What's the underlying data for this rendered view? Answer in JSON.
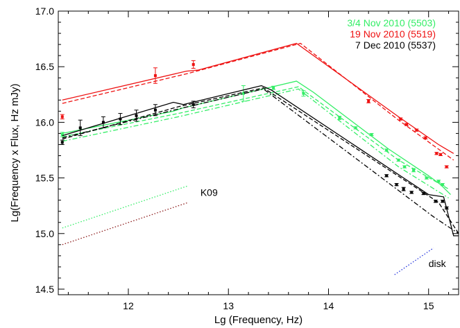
{
  "chart_data": {
    "type": "line",
    "title": "",
    "xlabel": "Lg (Frequency, Hz)",
    "ylabel": "Lg(Frequency x Flux, Hz mJy)",
    "xlim": [
      11.3,
      15.3
    ],
    "ylim": [
      14.45,
      17.0
    ],
    "x_ticks": [
      12,
      13,
      14,
      15
    ],
    "x_tick_labels": [
      "12",
      "13",
      "14",
      "15"
    ],
    "y_ticks": [
      14.5,
      15.0,
      15.5,
      16.0,
      16.5,
      17.0
    ],
    "y_tick_labels": [
      "14.5",
      "15.0",
      "15.5",
      "16.0",
      "16.5",
      "17.0"
    ],
    "grid": false,
    "legend_position": "top-right",
    "series": [
      {
        "name": "3/4 Nov 2010 (5503)",
        "color": "#33ee66",
        "points": [
          {
            "x": 11.34,
            "y": 15.89,
            "err": 0.02
          },
          {
            "x": 13.15,
            "y": 16.26,
            "err": 0.07
          },
          {
            "x": 13.45,
            "y": 16.31,
            "err": 0.015
          },
          {
            "x": 13.75,
            "y": 16.26,
            "err": 0.025
          },
          {
            "x": 14.11,
            "y": 16.04,
            "err": 0.015
          },
          {
            "x": 14.27,
            "y": 15.95,
            "err": 0.01
          },
          {
            "x": 14.43,
            "y": 15.89,
            "err": 0.01
          },
          {
            "x": 14.58,
            "y": 15.75,
            "err": 0.01
          },
          {
            "x": 14.7,
            "y": 15.66,
            "err": 0.01
          },
          {
            "x": 14.76,
            "y": 15.6,
            "err": 0.01
          },
          {
            "x": 14.85,
            "y": 15.57,
            "err": 0.015
          },
          {
            "x": 14.98,
            "y": 15.5,
            "err": 0.01
          },
          {
            "x": 15.1,
            "y": 15.47,
            "err": 0.01
          },
          {
            "x": 15.14,
            "y": 15.44,
            "err": 0.01
          }
        ],
        "model_solid": [
          [
            11.34,
            15.9
          ],
          [
            12.45,
            16.1
          ],
          [
            12.55,
            16.13
          ],
          [
            13.68,
            16.37
          ],
          [
            13.85,
            16.27
          ],
          [
            14.6,
            15.76
          ],
          [
            15.0,
            15.52
          ],
          [
            15.12,
            15.44
          ],
          [
            15.22,
            15.35
          ]
        ],
        "model_dashed": [
          [
            11.34,
            15.87
          ],
          [
            12.5,
            16.08
          ],
          [
            13.7,
            16.32
          ],
          [
            14.7,
            15.66
          ],
          [
            15.2,
            15.4
          ]
        ],
        "model_dashdot": [
          [
            11.34,
            15.83
          ],
          [
            12.5,
            16.05
          ],
          [
            13.7,
            16.3
          ],
          [
            14.7,
            15.6
          ],
          [
            15.2,
            15.32
          ]
        ]
      },
      {
        "name": "19 Nov 2010 (5519)",
        "color": "#ee1111",
        "points": [
          {
            "x": 11.34,
            "y": 16.05,
            "err": 0.02
          },
          {
            "x": 12.27,
            "y": 16.42,
            "err": 0.07
          },
          {
            "x": 12.65,
            "y": 16.52,
            "err": 0.035
          },
          {
            "x": 14.4,
            "y": 16.19,
            "err": 0.015
          },
          {
            "x": 14.72,
            "y": 16.03,
            "err": 0.01
          },
          {
            "x": 14.78,
            "y": 15.98,
            "err": 0.01
          },
          {
            "x": 14.88,
            "y": 15.93,
            "err": 0.01
          },
          {
            "x": 14.97,
            "y": 15.86,
            "err": 0.01
          },
          {
            "x": 15.08,
            "y": 15.72,
            "err": 0.01
          },
          {
            "x": 15.12,
            "y": 15.71,
            "err": 0.01
          },
          {
            "x": 15.18,
            "y": 15.6,
            "err": 0.01
          }
        ],
        "model_solid": [
          [
            11.34,
            16.2
          ],
          [
            12.58,
            16.46
          ],
          [
            12.7,
            16.47
          ],
          [
            13.68,
            16.71
          ],
          [
            14.7,
            16.05
          ],
          [
            15.1,
            15.8
          ],
          [
            15.25,
            15.72
          ]
        ],
        "model_dashed": [
          [
            11.34,
            16.17
          ],
          [
            12.6,
            16.44
          ],
          [
            13.72,
            16.71
          ],
          [
            14.7,
            16.02
          ],
          [
            15.25,
            15.66
          ]
        ],
        "model_dashdot": []
      },
      {
        "name": "7 Dec 2010 (5537)",
        "color": "#000000",
        "points": [
          {
            "x": 11.34,
            "y": 15.82,
            "err": 0.02
          },
          {
            "x": 11.52,
            "y": 15.95,
            "err": 0.07
          },
          {
            "x": 11.75,
            "y": 16.0,
            "err": 0.05
          },
          {
            "x": 11.92,
            "y": 16.03,
            "err": 0.05
          },
          {
            "x": 12.08,
            "y": 16.06,
            "err": 0.05
          },
          {
            "x": 12.27,
            "y": 16.11,
            "err": 0.05
          },
          {
            "x": 12.65,
            "y": 16.16,
            "err": 0.03
          },
          {
            "x": 14.58,
            "y": 15.52,
            "err": 0.01
          },
          {
            "x": 14.68,
            "y": 15.44,
            "err": 0.01
          },
          {
            "x": 14.75,
            "y": 15.4,
            "err": 0.015
          },
          {
            "x": 14.83,
            "y": 15.37,
            "err": 0.01
          },
          {
            "x": 14.95,
            "y": 15.36,
            "err": 0.01
          },
          {
            "x": 15.07,
            "y": 15.29,
            "err": 0.01
          },
          {
            "x": 15.14,
            "y": 15.29,
            "err": 0.01
          },
          {
            "x": 15.18,
            "y": 15.23,
            "err": 0.01
          }
        ],
        "model_solid": [
          [
            11.34,
            15.88
          ],
          [
            12.45,
            16.18
          ],
          [
            12.55,
            16.16
          ],
          [
            13.33,
            16.33
          ],
          [
            13.43,
            16.29
          ],
          [
            15.0,
            15.35
          ],
          [
            15.15,
            15.33
          ],
          [
            15.25,
            14.98
          ],
          [
            15.3,
            14.98
          ]
        ],
        "model_dashed": [
          [
            11.34,
            15.85
          ],
          [
            12.5,
            16.14
          ],
          [
            13.35,
            16.31
          ],
          [
            15.1,
            15.28
          ],
          [
            15.3,
            15.0
          ]
        ],
        "model_dashdot": [
          [
            11.34,
            15.86
          ],
          [
            12.5,
            16.12
          ],
          [
            13.35,
            16.3
          ],
          [
            15.05,
            15.15
          ],
          [
            15.3,
            15.0
          ]
        ]
      }
    ],
    "dotted_lines": [
      {
        "name": "K09 (green)",
        "color": "#33ee66",
        "points": [
          [
            11.34,
            15.05
          ],
          [
            12.6,
            15.43
          ]
        ]
      },
      {
        "name": "K09 (dark red)",
        "color": "#8b1a1a",
        "points": [
          [
            11.34,
            14.9
          ],
          [
            12.6,
            15.28
          ]
        ]
      },
      {
        "name": "disk",
        "color": "#2233dd",
        "points": [
          [
            14.66,
            14.63
          ],
          [
            15.05,
            14.87
          ]
        ]
      }
    ],
    "annotations": [
      {
        "text": "K09",
        "x": 12.72,
        "y": 15.34
      },
      {
        "text": "disk",
        "x": 15.0,
        "y": 14.7
      }
    ]
  }
}
